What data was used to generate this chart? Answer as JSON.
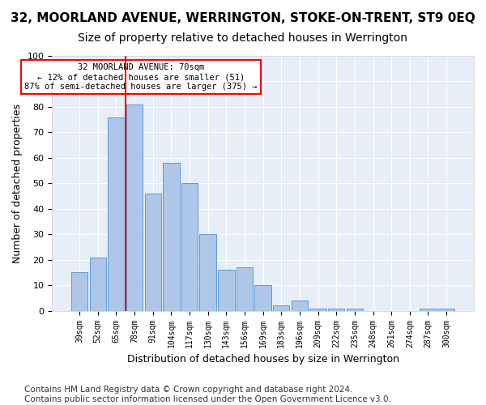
{
  "title": "32, MOORLAND AVENUE, WERRINGTON, STOKE-ON-TRENT, ST9 0EQ",
  "subtitle": "Size of property relative to detached houses in Werrington",
  "xlabel": "Distribution of detached houses by size in Werrington",
  "ylabel": "Number of detached properties",
  "categories": [
    "39sqm",
    "52sqm",
    "65sqm",
    "78sqm",
    "91sqm",
    "104sqm",
    "117sqm",
    "130sqm",
    "143sqm",
    "156sqm",
    "169sqm",
    "183sqm",
    "196sqm",
    "209sqm",
    "222sqm",
    "235sqm",
    "248sqm",
    "261sqm",
    "274sqm",
    "287sqm",
    "300sqm"
  ],
  "values": [
    15,
    21,
    76,
    81,
    46,
    58,
    50,
    30,
    16,
    17,
    10,
    2,
    4,
    1,
    1,
    1,
    0,
    0,
    0,
    1,
    1
  ],
  "bar_color": "#aec6e8",
  "bar_edge_color": "#5b9bd5",
  "vline_pos": 2.5,
  "vline_color": "red",
  "annotation_text": "32 MOORLAND AVENUE: 70sqm\n← 12% of detached houses are smaller (51)\n87% of semi-detached houses are larger (375) →",
  "annotation_box_color": "white",
  "annotation_box_edge": "red",
  "ylim": [
    0,
    100
  ],
  "yticks": [
    0,
    10,
    20,
    30,
    40,
    50,
    60,
    70,
    80,
    90,
    100
  ],
  "bg_color": "#e8eef8",
  "footer": "Contains HM Land Registry data © Crown copyright and database right 2024.\nContains public sector information licensed under the Open Government Licence v3.0.",
  "title_fontsize": 11,
  "subtitle_fontsize": 10,
  "xlabel_fontsize": 9,
  "ylabel_fontsize": 9,
  "footer_fontsize": 7.5
}
